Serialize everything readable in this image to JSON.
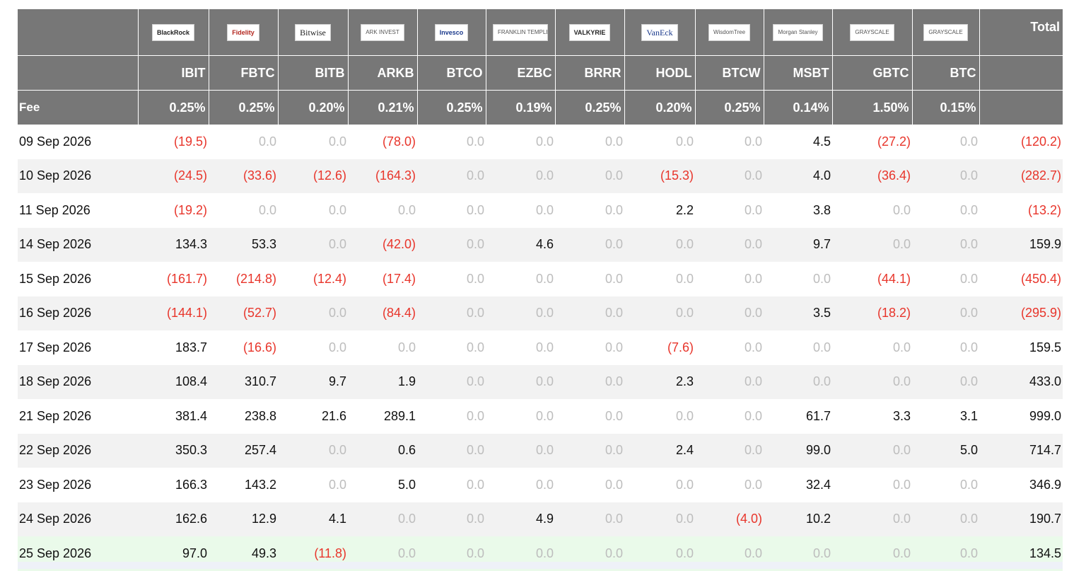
{
  "header": {
    "logos": [
      "BlackRock",
      "Fidelity",
      "Bitwise",
      "ARK INVEST",
      "Invesco",
      "FRANKLIN TEMPLETON",
      "VALKYRIE",
      "VanEck",
      "WisdomTree",
      "Morgan Stanley",
      "GRAYSCALE",
      "GRAYSCALE"
    ],
    "total_label": "Total",
    "tickers": [
      "IBIT",
      "FBTC",
      "BITB",
      "ARKB",
      "BTCO",
      "EZBC",
      "BRRR",
      "HODL",
      "BTCW",
      "MSBT",
      "GBTC",
      "BTC"
    ],
    "fee_label": "Fee",
    "fees": [
      "0.25%",
      "0.25%",
      "0.20%",
      "0.21%",
      "0.25%",
      "0.19%",
      "0.25%",
      "0.20%",
      "0.25%",
      "0.14%",
      "1.50%",
      "0.15%"
    ]
  },
  "colors": {
    "header_bg": "#777777",
    "negative": "#e8352b",
    "zero": "#bdbdbd",
    "highlight_row": "#eafaea"
  },
  "rows": [
    {
      "date": "09 Sep 2026",
      "values": [
        "(19.5)",
        "0.0",
        "0.0",
        "(78.0)",
        "0.0",
        "0.0",
        "0.0",
        "0.0",
        "0.0",
        "4.5",
        "(27.2)",
        "0.0"
      ],
      "total": "(120.2)"
    },
    {
      "date": "10 Sep 2026",
      "values": [
        "(24.5)",
        "(33.6)",
        "(12.6)",
        "(164.3)",
        "0.0",
        "0.0",
        "0.0",
        "(15.3)",
        "0.0",
        "4.0",
        "(36.4)",
        "0.0"
      ],
      "total": "(282.7)"
    },
    {
      "date": "11 Sep 2026",
      "values": [
        "(19.2)",
        "0.0",
        "0.0",
        "0.0",
        "0.0",
        "0.0",
        "0.0",
        "2.2",
        "0.0",
        "3.8",
        "0.0",
        "0.0"
      ],
      "total": "(13.2)"
    },
    {
      "date": "14 Sep 2026",
      "values": [
        "134.3",
        "53.3",
        "0.0",
        "(42.0)",
        "0.0",
        "4.6",
        "0.0",
        "0.0",
        "0.0",
        "9.7",
        "0.0",
        "0.0"
      ],
      "total": "159.9"
    },
    {
      "date": "15 Sep 2026",
      "values": [
        "(161.7)",
        "(214.8)",
        "(12.4)",
        "(17.4)",
        "0.0",
        "0.0",
        "0.0",
        "0.0",
        "0.0",
        "0.0",
        "(44.1)",
        "0.0"
      ],
      "total": "(450.4)"
    },
    {
      "date": "16 Sep 2026",
      "values": [
        "(144.1)",
        "(52.7)",
        "0.0",
        "(84.4)",
        "0.0",
        "0.0",
        "0.0",
        "0.0",
        "0.0",
        "3.5",
        "(18.2)",
        "0.0"
      ],
      "total": "(295.9)"
    },
    {
      "date": "17 Sep 2026",
      "values": [
        "183.7",
        "(16.6)",
        "0.0",
        "0.0",
        "0.0",
        "0.0",
        "0.0",
        "(7.6)",
        "0.0",
        "0.0",
        "0.0",
        "0.0"
      ],
      "total": "159.5"
    },
    {
      "date": "18 Sep 2026",
      "values": [
        "108.4",
        "310.7",
        "9.7",
        "1.9",
        "0.0",
        "0.0",
        "0.0",
        "2.3",
        "0.0",
        "0.0",
        "0.0",
        "0.0"
      ],
      "total": "433.0"
    },
    {
      "date": "21 Sep 2026",
      "values": [
        "381.4",
        "238.8",
        "21.6",
        "289.1",
        "0.0",
        "0.0",
        "0.0",
        "0.0",
        "0.0",
        "61.7",
        "3.3",
        "3.1"
      ],
      "total": "999.0"
    },
    {
      "date": "22 Sep 2026",
      "values": [
        "350.3",
        "257.4",
        "0.0",
        "0.6",
        "0.0",
        "0.0",
        "0.0",
        "2.4",
        "0.0",
        "99.0",
        "0.0",
        "5.0"
      ],
      "total": "714.7"
    },
    {
      "date": "23 Sep 2026",
      "values": [
        "166.3",
        "143.2",
        "0.0",
        "5.0",
        "0.0",
        "0.0",
        "0.0",
        "0.0",
        "0.0",
        "32.4",
        "0.0",
        "0.0"
      ],
      "total": "346.9"
    },
    {
      "date": "24 Sep 2026",
      "values": [
        "162.6",
        "12.9",
        "4.1",
        "0.0",
        "0.0",
        "4.9",
        "0.0",
        "0.0",
        "(4.0)",
        "10.2",
        "0.0",
        "0.0"
      ],
      "total": "190.7"
    },
    {
      "date": "25 Sep 2026",
      "values": [
        "97.0",
        "49.3",
        "(11.8)",
        "0.0",
        "0.0",
        "0.0",
        "0.0",
        "0.0",
        "0.0",
        "0.0",
        "0.0",
        "0.0"
      ],
      "total": "134.5"
    }
  ]
}
